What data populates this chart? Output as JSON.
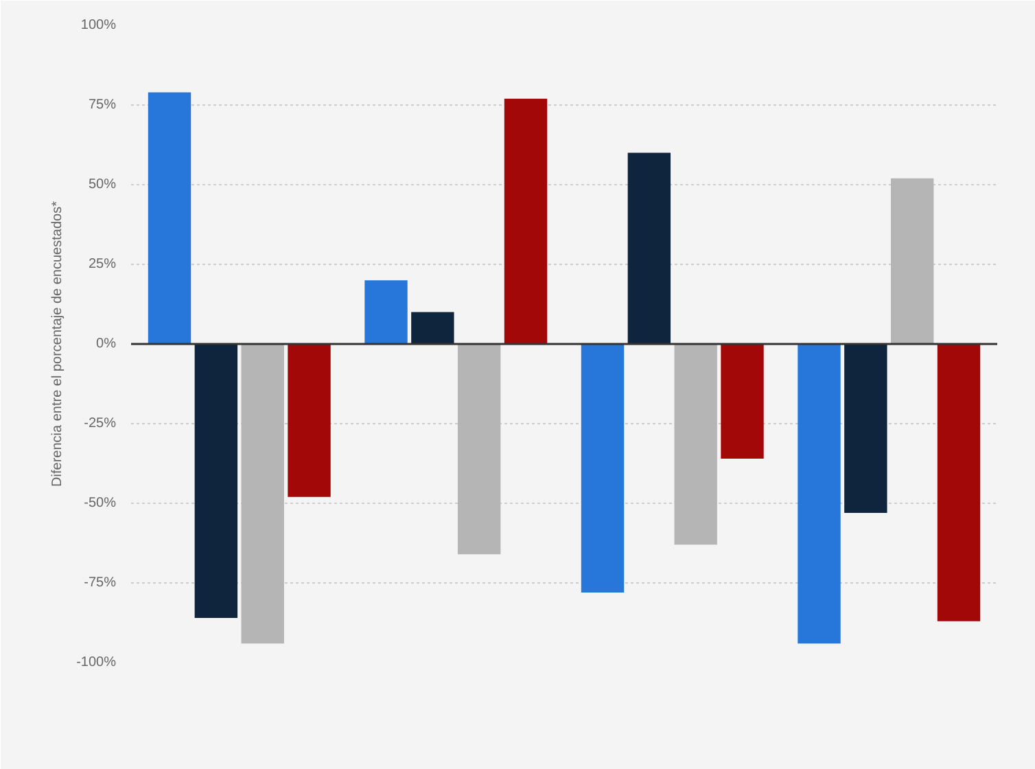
{
  "chart_data": {
    "type": "bar",
    "ylabel": "Diferencia entre el porcentaje de encuestados*",
    "categories": [
      null,
      null,
      null,
      null
    ],
    "series": [
      {
        "color": "#2777db",
        "values": [
          79,
          20,
          -78,
          -94
        ]
      },
      {
        "color": "#0e253d",
        "values": [
          -86,
          10,
          60,
          -53
        ]
      },
      {
        "color": "#b5b5b5",
        "values": [
          -94,
          -66,
          -63,
          52
        ]
      },
      {
        "color": "#a30808",
        "values": [
          -48,
          77,
          -36,
          -87
        ]
      }
    ],
    "ylim": [
      -100,
      100
    ],
    "yticks": [
      {
        "value": 100,
        "label": "100%"
      },
      {
        "value": 75,
        "label": "75%"
      },
      {
        "value": 50,
        "label": "50%"
      },
      {
        "value": 25,
        "label": "25%"
      },
      {
        "value": 0,
        "label": "0%"
      },
      {
        "value": -25,
        "label": "-25%"
      },
      {
        "value": -50,
        "label": "-50%"
      },
      {
        "value": -75,
        "label": "-75%"
      },
      {
        "value": -100,
        "label": "-100%"
      }
    ],
    "grid": "y",
    "tick_labels": "y"
  }
}
